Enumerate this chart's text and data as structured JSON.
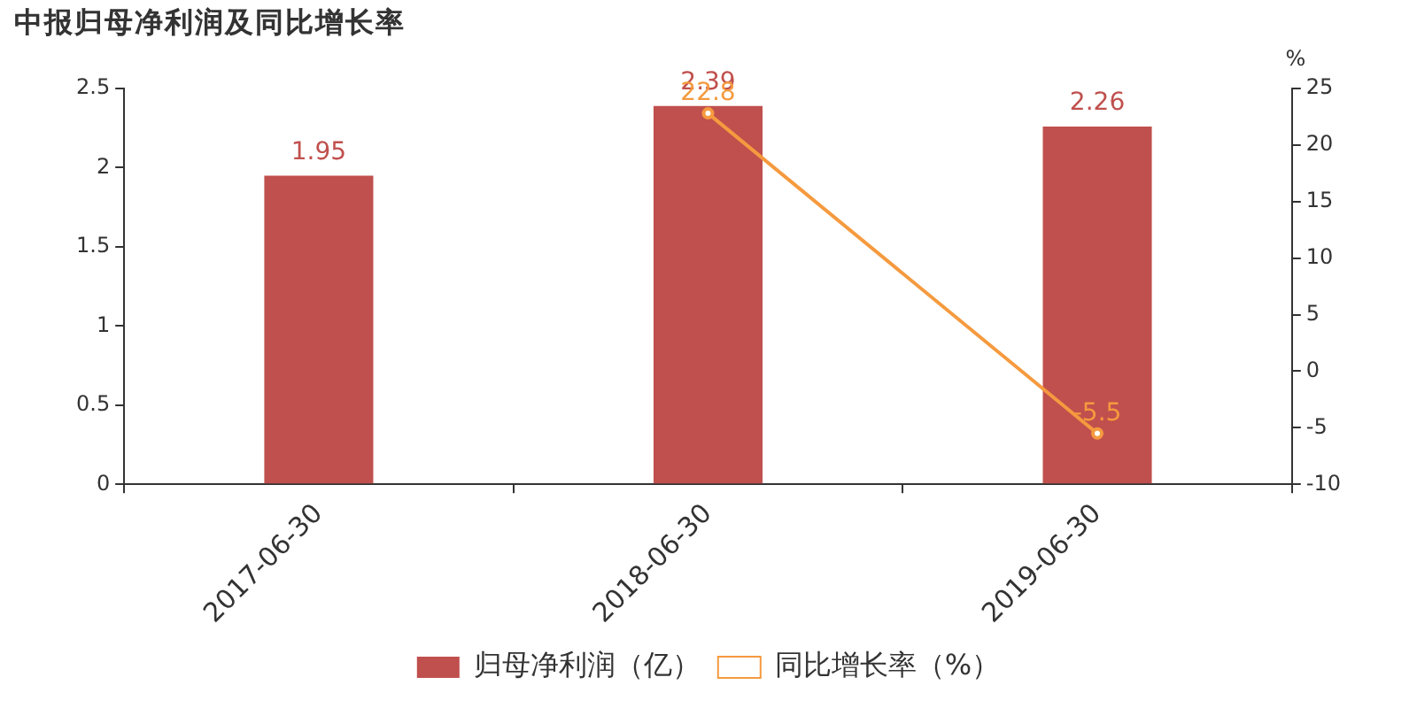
{
  "chart_data": {
    "type": "bar",
    "title": "中报归母净利润及同比增长率",
    "y2label": "%",
    "categories": [
      "2017-06-30",
      "2018-06-30",
      "2019-06-30"
    ],
    "series": [
      {
        "name": "归母净利润（亿）",
        "color": "#c0504d",
        "values": [
          1.95,
          2.39,
          2.26
        ]
      },
      {
        "name": "同比增长率（%）",
        "type": "line",
        "axis": "y2",
        "color": "#f59a3f",
        "values": [
          null,
          22.8,
          -5.5
        ]
      }
    ],
    "ylim": [
      0,
      2.5
    ],
    "yticks": [
      0,
      0.5,
      1,
      1.5,
      2,
      2.5
    ],
    "y2lim": [
      -10,
      25
    ],
    "y2ticks": [
      -10,
      -5,
      0,
      5,
      10,
      15,
      20,
      25
    ],
    "data_labels": true,
    "grid": false,
    "legend": "bottom",
    "marker": "circle",
    "line_style": "solid"
  }
}
